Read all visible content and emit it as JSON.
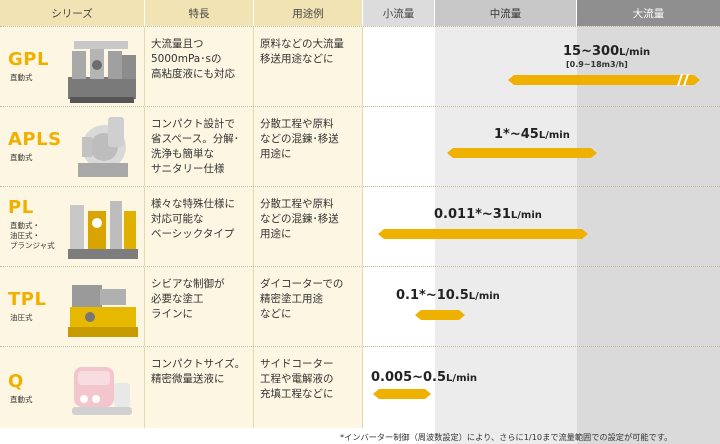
{
  "header": {
    "series": "シリーズ",
    "features": "特長",
    "use": "用途例",
    "small": "小流量",
    "medium": "中流量",
    "large": "大流量"
  },
  "rows": [
    {
      "name": "GPL",
      "sub": "直動式",
      "features": [
        "大流量且つ",
        "5000mPa･sの",
        "高粘度液にも対応"
      ],
      "use": [
        "原料などの大流量",
        "移送用途などに"
      ],
      "range": "15~300",
      "unit": "L/min",
      "range_sub": "[0.9~18m3/h]"
    },
    {
      "name": "APLS",
      "sub": "直動式",
      "features": [
        "コンパクト設計で",
        "省スペース。分解･",
        "洗浄も簡単な",
        "サニタリー仕様"
      ],
      "use": [
        "分散工程や原料",
        "などの混錬･移送",
        "用途に"
      ],
      "range": "1*~45",
      "unit": "L/min"
    },
    {
      "name": "PL",
      "sub": "直動式・\n油圧式・\nプランジャ式",
      "features": [
        "様々な特殊仕様に",
        "対応可能な",
        "ベーシックタイプ"
      ],
      "use": [
        "分散工程や原料",
        "などの混錬･移送",
        "用途に"
      ],
      "range": "0.011*~31",
      "unit": "L/min"
    },
    {
      "name": "TPL",
      "sub": "油圧式",
      "features": [
        "シビアな制御が",
        "必要な塗工",
        "ラインに"
      ],
      "use": [
        "ダイコーターでの",
        "精密塗工用途",
        "などに"
      ],
      "range": "0.1*~10.5",
      "unit": "L/min"
    },
    {
      "name": "Q",
      "sub": "直動式",
      "features": [
        "コンパクトサイズ。",
        "精密微量送液に"
      ],
      "use": [
        "サイドコーター",
        "工程や電解液の",
        "充填工程などに"
      ],
      "range": "0.005~0.5",
      "unit": "L/min"
    }
  ],
  "footnote": "*インバーター制御（周波数設定）により、さらに1/10まで流量範囲での設定が可能です。",
  "colors": {
    "accent": "#f0b000",
    "cream": "#fdf6e2",
    "header_cream": "#f2e3b4"
  }
}
